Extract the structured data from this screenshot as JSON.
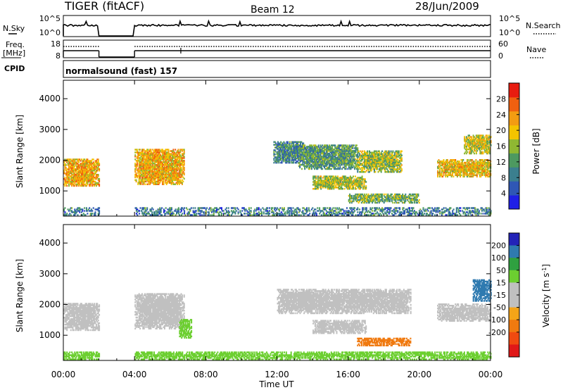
{
  "header": {
    "station": "TIGER (fitACF)",
    "beam": "Beam 12",
    "date": "28/Jun/2009"
  },
  "top_panels": {
    "nsky_label": "N.Sky",
    "nsearch_label": "N.Search",
    "freq_label_1": "Freq.",
    "freq_label_2": "[MHz]",
    "nave_label": "Nave",
    "cpid_label": "CPID",
    "cpid_value": "normalsound (fast) 157",
    "nsky_ticks": [
      "10^5",
      "10^0"
    ],
    "nsearch_ticks": [
      "10^5",
      "10^0"
    ],
    "freq_ticks": [
      "18",
      "8"
    ],
    "nave_ticks": [
      "60",
      "0"
    ]
  },
  "colors": {
    "power_scale": [
      "#1f1fe6",
      "#2f57b5",
      "#3b7f8e",
      "#4d9960",
      "#8fb832",
      "#f4c400",
      "#f39c12",
      "#f06010",
      "#e81c10"
    ],
    "velocity_scale": [
      "#e01818",
      "#f04a10",
      "#f07a10",
      "#f4a418",
      "#c0c0c0",
      "#c0c0c0",
      "#6ccf30",
      "#2fa040",
      "#2f7ab0",
      "#2323b8"
    ]
  },
  "chart_data": [
    {
      "type": "heatmap",
      "panel": "power",
      "xlabel": "Time UT",
      "ylabel": "Slant Range [km]",
      "xlim": [
        "00:00",
        "24:00"
      ],
      "x_ticks": [
        "00:00",
        "04:00",
        "08:00",
        "12:00",
        "16:00",
        "20:00",
        "00:00"
      ],
      "ylim": [
        180,
        4600
      ],
      "y_ticks": [
        1000,
        2000,
        3000,
        4000
      ],
      "colorbar_label": "Power [dB]",
      "colorbar_ticks": [
        4,
        8,
        12,
        16,
        20,
        24,
        28
      ],
      "colorbar_range": [
        0,
        32
      ],
      "data_gap": [
        "02:00",
        "04:00"
      ],
      "echo_regions": [
        {
          "t0": 0.0,
          "t1": 2.0,
          "r0": 1150,
          "r1": 2050,
          "val": 22
        },
        {
          "t0": 4.0,
          "t1": 6.8,
          "r0": 1200,
          "r1": 2350,
          "val": 21
        },
        {
          "t0": 11.8,
          "t1": 13.5,
          "r0": 1900,
          "r1": 2600,
          "val": 10
        },
        {
          "t0": 13.2,
          "t1": 16.5,
          "r0": 1700,
          "r1": 2500,
          "val": 12
        },
        {
          "t0": 14.0,
          "t1": 17.0,
          "r0": 1050,
          "r1": 1500,
          "val": 17
        },
        {
          "t0": 16.5,
          "t1": 19.0,
          "r0": 1600,
          "r1": 2300,
          "val": 16
        },
        {
          "t0": 21.0,
          "t1": 24.0,
          "r0": 1450,
          "r1": 2000,
          "val": 20
        },
        {
          "t0": 22.5,
          "t1": 24.0,
          "r0": 2200,
          "r1": 2800,
          "val": 18
        },
        {
          "t0": 16.0,
          "t1": 20.0,
          "r0": 600,
          "r1": 900,
          "val": 14
        },
        {
          "t0": 0.0,
          "t1": 24.0,
          "r0": 200,
          "r1": 450,
          "val": 9
        }
      ]
    },
    {
      "type": "heatmap",
      "panel": "velocity",
      "xlabel": "Time UT",
      "ylabel": "Slant Range [km]",
      "xlim": [
        "00:00",
        "24:00"
      ],
      "x_ticks": [
        "00:00",
        "04:00",
        "08:00",
        "12:00",
        "16:00",
        "20:00",
        "00:00"
      ],
      "ylim": [
        180,
        4600
      ],
      "y_ticks": [
        1000,
        2000,
        3000,
        4000
      ],
      "colorbar_label": "Velocity [m s^-1]",
      "colorbar_ticks": [
        -200,
        -100,
        -50,
        -15,
        15,
        50,
        100,
        200
      ],
      "data_gap": [
        "02:00",
        "04:00"
      ],
      "echo_regions": [
        {
          "t0": 0.0,
          "t1": 2.0,
          "r0": 1150,
          "r1": 2050,
          "val": 0
        },
        {
          "t0": 4.0,
          "t1": 6.8,
          "r0": 1200,
          "r1": 2350,
          "val": 0
        },
        {
          "t0": 6.5,
          "t1": 7.2,
          "r0": 900,
          "r1": 1500,
          "val": 40
        },
        {
          "t0": 12.0,
          "t1": 19.5,
          "r0": 1700,
          "r1": 2500,
          "val": 0
        },
        {
          "t0": 14.0,
          "t1": 17.0,
          "r0": 1050,
          "r1": 1500,
          "val": 0
        },
        {
          "t0": 16.5,
          "t1": 19.5,
          "r0": 650,
          "r1": 900,
          "val": -70
        },
        {
          "t0": 21.0,
          "t1": 24.0,
          "r0": 1450,
          "r1": 2000,
          "val": 0
        },
        {
          "t0": 23.0,
          "t1": 24.0,
          "r0": 2100,
          "r1": 2800,
          "val": 150
        },
        {
          "t0": 0.0,
          "t1": 24.0,
          "r0": 200,
          "r1": 450,
          "val": 30
        }
      ]
    }
  ]
}
